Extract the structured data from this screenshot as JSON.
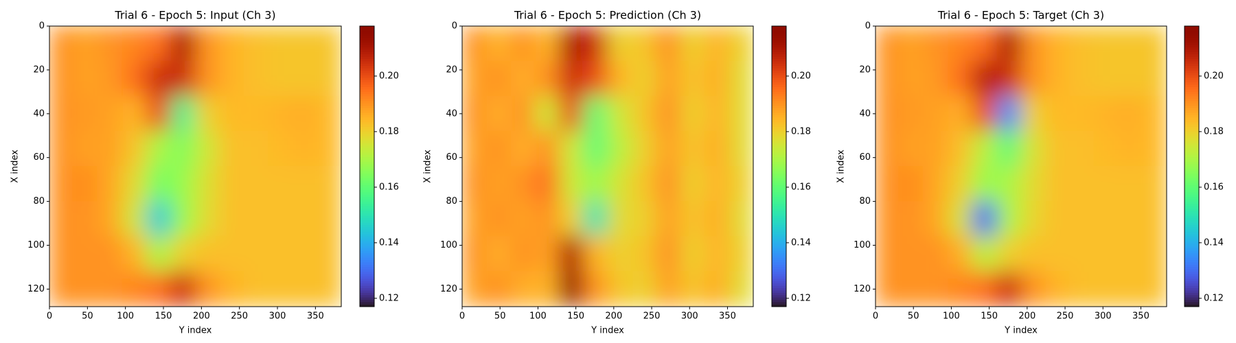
{
  "chart_data": [
    {
      "type": "heatmap",
      "title": "Trial 6 - Epoch 5: Input (Ch 3)",
      "xlabel": "Y index",
      "ylabel": "X index",
      "xlim": [
        0,
        384
      ],
      "ylim": [
        128,
        0
      ],
      "xticks": [
        0,
        50,
        100,
        150,
        200,
        250,
        300,
        350
      ],
      "yticks": [
        0,
        20,
        40,
        60,
        80,
        100,
        120
      ],
      "colormap": "turbo",
      "clim": [
        0.117,
        0.218
      ],
      "cticks": [
        0.12,
        0.14,
        0.16,
        0.18,
        {
          "value": 0.2,
          "label": "0.20"
        }
      ],
      "z": [
        [
          0.19,
          0.188,
          0.19,
          0.192,
          0.195,
          0.21,
          0.19,
          0.185,
          0.183,
          0.182,
          0.182,
          0.182
        ],
        [
          0.19,
          0.188,
          0.189,
          0.195,
          0.205,
          0.205,
          0.19,
          0.185,
          0.183,
          0.182,
          0.182,
          0.182
        ],
        [
          0.19,
          0.189,
          0.188,
          0.185,
          0.2,
          0.155,
          0.18,
          0.184,
          0.184,
          0.185,
          0.186,
          0.184
        ],
        [
          0.19,
          0.188,
          0.188,
          0.182,
          0.17,
          0.165,
          0.175,
          0.183,
          0.183,
          0.184,
          0.185,
          0.184
        ],
        [
          0.19,
          0.191,
          0.187,
          0.178,
          0.163,
          0.168,
          0.177,
          0.183,
          0.183,
          0.183,
          0.183,
          0.183
        ],
        [
          0.19,
          0.19,
          0.187,
          0.175,
          0.145,
          0.168,
          0.178,
          0.183,
          0.183,
          0.183,
          0.183,
          0.183
        ],
        [
          0.19,
          0.19,
          0.19,
          0.185,
          0.17,
          0.18,
          0.183,
          0.183,
          0.183,
          0.183,
          0.183,
          0.183
        ],
        [
          0.19,
          0.19,
          0.19,
          0.192,
          0.195,
          0.205,
          0.19,
          0.185,
          0.183,
          0.183,
          0.183,
          0.183
        ]
      ]
    },
    {
      "type": "heatmap",
      "title": "Trial 6 - Epoch 5: Prediction (Ch 3)",
      "xlabel": "Y index",
      "ylabel": "X index",
      "xlim": [
        0,
        384
      ],
      "ylim": [
        128,
        0
      ],
      "xticks": [
        0,
        50,
        100,
        150,
        200,
        250,
        300,
        350
      ],
      "yticks": [
        0,
        20,
        40,
        60,
        80,
        100,
        120
      ],
      "colormap": "turbo",
      "clim": [
        0.117,
        0.218
      ],
      "cticks": [
        0.12,
        0.14,
        0.16,
        0.18,
        {
          "value": 0.2,
          "label": "0.20"
        }
      ],
      "z": [
        [
          0.19,
          0.185,
          0.19,
          0.185,
          0.21,
          0.205,
          0.18,
          0.182,
          0.19,
          0.18,
          0.185,
          0.18
        ],
        [
          0.188,
          0.19,
          0.186,
          0.19,
          0.205,
          0.2,
          0.185,
          0.18,
          0.188,
          0.182,
          0.186,
          0.178
        ],
        [
          0.19,
          0.186,
          0.19,
          0.175,
          0.2,
          0.16,
          0.175,
          0.182,
          0.19,
          0.18,
          0.185,
          0.178
        ],
        [
          0.188,
          0.19,
          0.186,
          0.19,
          0.175,
          0.16,
          0.172,
          0.18,
          0.188,
          0.182,
          0.186,
          0.178
        ],
        [
          0.19,
          0.188,
          0.19,
          0.195,
          0.175,
          0.168,
          0.176,
          0.182,
          0.19,
          0.18,
          0.185,
          0.18
        ],
        [
          0.188,
          0.19,
          0.188,
          0.19,
          0.18,
          0.15,
          0.178,
          0.18,
          0.188,
          0.182,
          0.186,
          0.178
        ],
        [
          0.19,
          0.186,
          0.19,
          0.188,
          0.21,
          0.185,
          0.18,
          0.182,
          0.19,
          0.18,
          0.185,
          0.18
        ],
        [
          0.188,
          0.19,
          0.186,
          0.185,
          0.215,
          0.19,
          0.182,
          0.18,
          0.188,
          0.182,
          0.186,
          0.178
        ]
      ]
    },
    {
      "type": "heatmap",
      "title": "Trial 6 - Epoch 5: Target (Ch 3)",
      "xlabel": "Y index",
      "ylabel": "X index",
      "xlim": [
        0,
        384
      ],
      "ylim": [
        128,
        0
      ],
      "xticks": [
        0,
        50,
        100,
        150,
        200,
        250,
        300,
        350
      ],
      "yticks": [
        0,
        20,
        40,
        60,
        80,
        100,
        120
      ],
      "colormap": "turbo",
      "clim": [
        0.117,
        0.218
      ],
      "cticks": [
        0.12,
        0.14,
        0.16,
        0.18,
        {
          "value": 0.2,
          "label": "0.20"
        }
      ],
      "z": [
        [
          0.19,
          0.188,
          0.19,
          0.192,
          0.195,
          0.21,
          0.19,
          0.185,
          0.183,
          0.182,
          0.182,
          0.182
        ],
        [
          0.19,
          0.188,
          0.189,
          0.195,
          0.208,
          0.205,
          0.19,
          0.185,
          0.183,
          0.182,
          0.182,
          0.182
        ],
        [
          0.19,
          0.189,
          0.188,
          0.186,
          0.2,
          0.135,
          0.18,
          0.184,
          0.184,
          0.185,
          0.186,
          0.184
        ],
        [
          0.19,
          0.188,
          0.188,
          0.183,
          0.172,
          0.16,
          0.176,
          0.183,
          0.183,
          0.184,
          0.185,
          0.184
        ],
        [
          0.19,
          0.191,
          0.187,
          0.18,
          0.168,
          0.17,
          0.178,
          0.183,
          0.183,
          0.183,
          0.183,
          0.183
        ],
        [
          0.19,
          0.19,
          0.187,
          0.176,
          0.13,
          0.17,
          0.179,
          0.183,
          0.183,
          0.183,
          0.183,
          0.183
        ],
        [
          0.19,
          0.19,
          0.19,
          0.186,
          0.172,
          0.18,
          0.183,
          0.183,
          0.183,
          0.183,
          0.183,
          0.183
        ],
        [
          0.19,
          0.19,
          0.19,
          0.192,
          0.195,
          0.205,
          0.19,
          0.185,
          0.183,
          0.183,
          0.183,
          0.183
        ]
      ]
    }
  ]
}
